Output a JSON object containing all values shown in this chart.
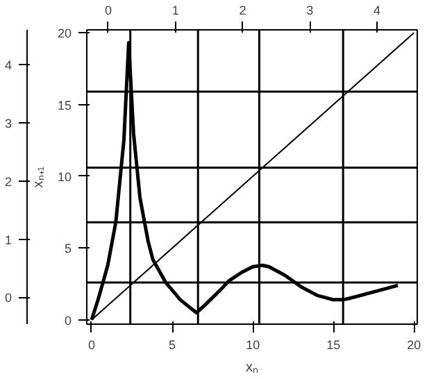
{
  "chart_data": {
    "type": "line",
    "xlabel": "xₙ",
    "ylabel": "xₙ₊₁",
    "xlim": [
      -0.3,
      20.2
    ],
    "ylim": [
      -0.3,
      20.2
    ],
    "xticks": [
      0,
      5,
      10,
      15,
      20
    ],
    "yticks": [
      0,
      5,
      10,
      15,
      20
    ],
    "x2lim": [
      -0.32,
      4.6
    ],
    "x2ticks": [
      0,
      1,
      2,
      3,
      4
    ],
    "y2lim": [
      -0.46,
      4.6
    ],
    "y2ticks": [
      0,
      1,
      2,
      3,
      4
    ],
    "grid": false,
    "marker": "none",
    "line_style": "solid",
    "series": [
      {
        "color": "#000000",
        "x": [
          0,
          0.4,
          1,
          1.5,
          2,
          2.3,
          2.6,
          3,
          3.5,
          3.8,
          4.6,
          5.5,
          6.5,
          7,
          8,
          8.5,
          9.3,
          10,
          10.6,
          11,
          12,
          13,
          14,
          15,
          15.6,
          16,
          17,
          18,
          19
        ],
        "values": [
          0,
          1.4,
          3.8,
          6.8,
          12.5,
          19.3,
          13,
          8.5,
          5.5,
          4.2,
          2.6,
          1.4,
          0.5,
          1.0,
          2.1,
          2.7,
          3.3,
          3.7,
          3.8,
          3.7,
          3.1,
          2.3,
          1.7,
          1.4,
          1.4,
          1.5,
          1.8,
          2.1,
          2.4
        ]
      },
      {
        "color": "#000000",
        "x": [
          0,
          20
        ],
        "values": [
          0,
          20
        ]
      }
    ],
    "ref_lines": [
      {
        "axis": "x",
        "value": 2.4
      },
      {
        "axis": "x",
        "value": 6.6
      },
      {
        "axis": "x",
        "value": 10.4
      },
      {
        "axis": "x",
        "value": 15.6
      },
      {
        "axis": "y",
        "value": 2.6
      },
      {
        "axis": "y",
        "value": 6.8
      },
      {
        "axis": "y",
        "value": 10.6
      },
      {
        "axis": "y",
        "value": 15.9
      }
    ]
  }
}
